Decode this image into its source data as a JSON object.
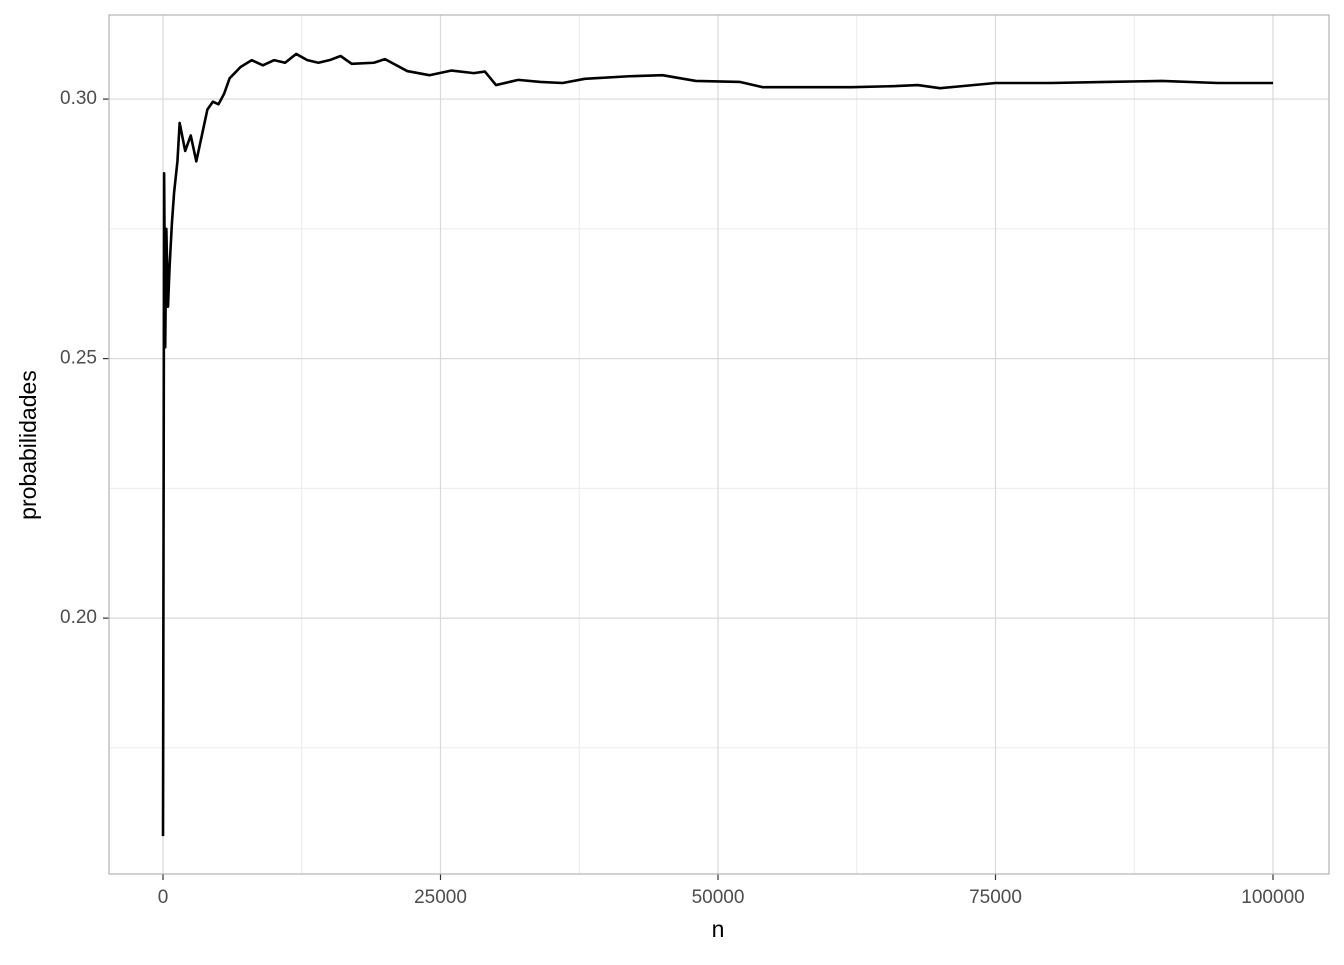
{
  "chart_data": {
    "type": "line",
    "xlabel": "n",
    "ylabel": "probabilidades",
    "xlim": [
      -4865,
      105045
    ],
    "ylim": [
      0.1507,
      0.3162
    ],
    "xticks": [
      0,
      25000,
      50000,
      75000,
      100000
    ],
    "yticks": [
      {
        "value": 0.2,
        "label": "0.20"
      },
      {
        "value": 0.25,
        "label": "0.25"
      },
      {
        "value": 0.3,
        "label": "0.30"
      }
    ],
    "x_minor_grid": [
      12500,
      37500,
      62500,
      87500
    ],
    "y_minor_grid": [
      0.175,
      0.225,
      0.275
    ],
    "grid": true,
    "series": [
      {
        "color": "#000000",
        "x": [
          1,
          60,
          100,
          150,
          200,
          300,
          450,
          600,
          800,
          1000,
          1300,
          1500,
          2000,
          2500,
          3000,
          3500,
          4000,
          4500,
          5000,
          5500,
          6000,
          7000,
          8000,
          9000,
          10000,
          11000,
          12000,
          13000,
          14000,
          15000,
          16000,
          17000,
          19000,
          20000,
          22000,
          24000,
          26000,
          28000,
          29000,
          30000,
          32000,
          34000,
          36000,
          38000,
          42000,
          45000,
          48000,
          52000,
          54000,
          58000,
          62000,
          66000,
          68000,
          70000,
          72000,
          75000,
          80000,
          85000,
          90000,
          95000,
          100000
        ],
        "values": [
          0.158,
          0.23,
          0.2857,
          0.27,
          0.2522,
          0.275,
          0.26,
          0.268,
          0.276,
          0.282,
          0.288,
          0.2954,
          0.29,
          0.293,
          0.288,
          0.293,
          0.298,
          0.2995,
          0.299,
          0.301,
          0.304,
          0.3062,
          0.3075,
          0.3065,
          0.3075,
          0.307,
          0.3087,
          0.3075,
          0.307,
          0.3075,
          0.3083,
          0.3068,
          0.307,
          0.3077,
          0.3054,
          0.3046,
          0.3055,
          0.305,
          0.3053,
          0.3027,
          0.3037,
          0.3033,
          0.3031,
          0.3039,
          0.3044,
          0.3046,
          0.3035,
          0.3033,
          0.3023,
          0.3023,
          0.3023,
          0.3025,
          0.3027,
          0.3021,
          0.3025,
          0.3031,
          0.3031,
          0.3033,
          0.3035,
          0.3031,
          0.3031
        ]
      }
    ]
  }
}
